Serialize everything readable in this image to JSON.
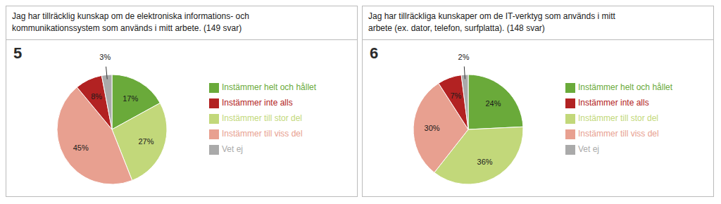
{
  "chart_data": [
    {
      "type": "pie",
      "title": "Jag har tillräcklig kunskap om de elektroniska informations- och\nkommunikationssystem som används i mitt arbete. (149 svar)",
      "annotations": [
        "5"
      ],
      "categories": [
        "Instämmer helt och hållet",
        "Instämmer till stor del",
        "Instämmer till viss del",
        "Instämmer inte alls",
        "Vet ej"
      ],
      "values": [
        17,
        27,
        45,
        8,
        3
      ],
      "value_labels": [
        "17%",
        "27%",
        "45%",
        "8%",
        "3%"
      ],
      "colors": [
        "#6aaa3a",
        "#c2d87a",
        "#e8a090",
        "#b22222",
        "#aaaaaa"
      ],
      "data_labels": true,
      "legend": "right"
    },
    {
      "type": "pie",
      "title": "Jag har tillräckliga kunskaper om de IT-verktyg som används i mitt\narbete (ex. dator, telefon, surfplatta).  (148 svar)",
      "annotations": [
        "6"
      ],
      "categories": [
        "Instämmer helt och hållet",
        "Instämmer till stor del",
        "Instämmer till viss del",
        "Instämmer inte alls",
        "Vet ej"
      ],
      "values": [
        24,
        36,
        30,
        7,
        2
      ],
      "value_labels": [
        "24%",
        "36%",
        "30%",
        "7%",
        "2%"
      ],
      "colors": [
        "#6aaa3a",
        "#c2d87a",
        "#e8a090",
        "#b22222",
        "#aaaaaa"
      ],
      "data_labels": true,
      "legend": "right"
    }
  ]
}
